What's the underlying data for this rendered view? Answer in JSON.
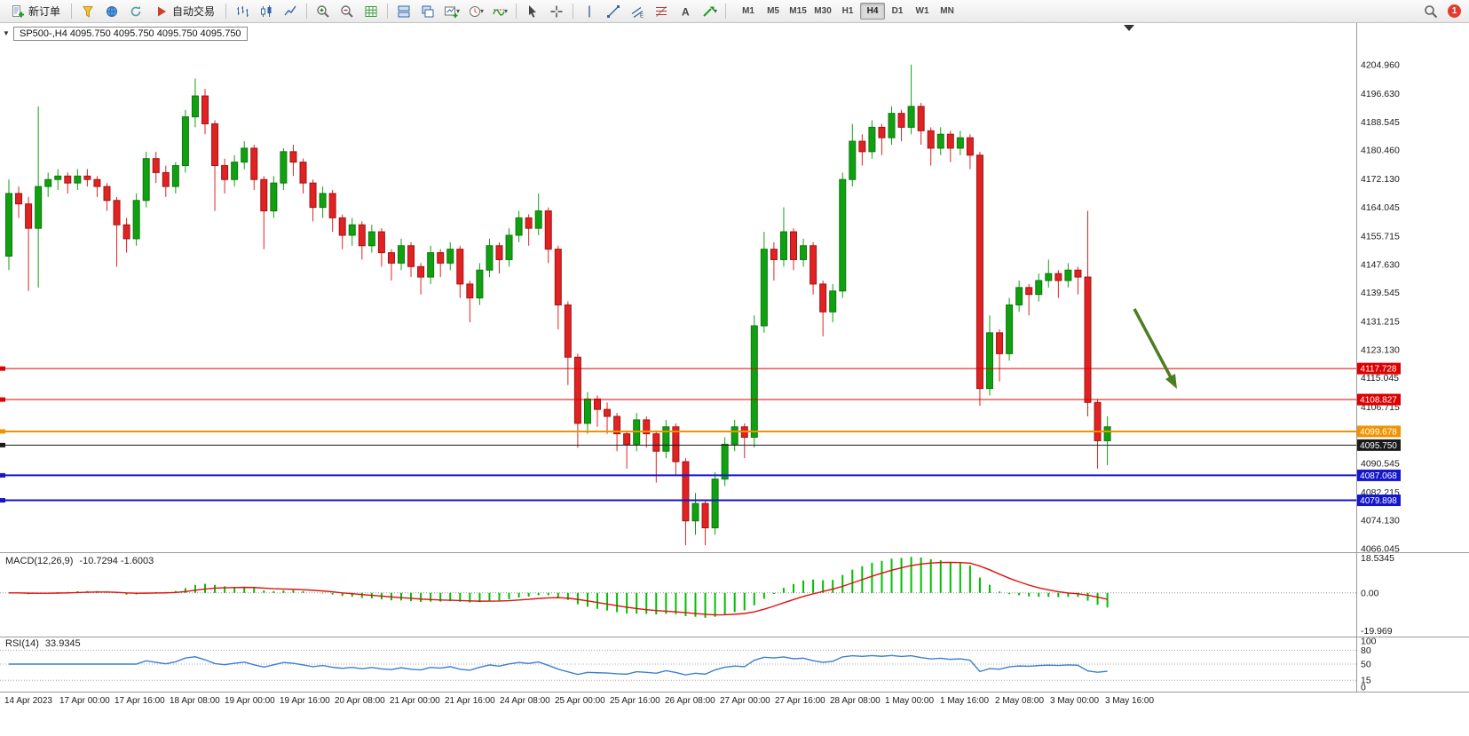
{
  "toolbar": {
    "new_order": "新订单",
    "auto_trading": "自动交易",
    "timeframes": [
      "M1",
      "M5",
      "M15",
      "M30",
      "H1",
      "H4",
      "D1",
      "W1",
      "MN"
    ],
    "active_timeframe": "H4",
    "notification_count": "1"
  },
  "chart": {
    "symbol_header": "SP500-,H4  4095.750 4095.750 4095.750 4095.750"
  },
  "chart_data": {
    "type": "candlestick",
    "symbol": "SP500-",
    "timeframe": "H4",
    "price_range": {
      "min": 4065.0,
      "max": 4215.9
    },
    "price_axis_ticks": [
      "4204.960",
      "4196.630",
      "4188.545",
      "4180.460",
      "4172.130",
      "4164.045",
      "4155.715",
      "4147.630",
      "4139.545",
      "4131.215",
      "4123.130",
      "4115.045",
      "4106.715",
      "4090.545",
      "4082.215",
      "4074.130",
      "4066.045"
    ],
    "price_lines": [
      {
        "price": 4117.728,
        "label": "4117.728",
        "color": "#dd0000",
        "width": 1
      },
      {
        "price": 4108.827,
        "label": "4108.827",
        "color": "#dd0000",
        "width": 1
      },
      {
        "price": 4099.678,
        "label": "4099.678",
        "color": "#ef9400",
        "width": 2
      },
      {
        "price": 4095.75,
        "label": "4095.750",
        "color": "#1a1a1a",
        "width": 1
      },
      {
        "price": 4087.068,
        "label": "4087.068",
        "color": "#1515cc",
        "width": 2
      },
      {
        "price": 4079.898,
        "label": "4079.898",
        "color": "#1515cc",
        "width": 2
      }
    ],
    "current_price": "4095.750",
    "up_color": "#11a011",
    "down_color": "#e02222",
    "arrow_annotation": {
      "color": "#4c7d21"
    },
    "time_labels": [
      "14 Apr 2023",
      "17 Apr 00:00",
      "17 Apr 16:00",
      "18 Apr 08:00",
      "19 Apr 00:00",
      "19 Apr 16:00",
      "20 Apr 08:00",
      "21 Apr 00:00",
      "21 Apr 16:00",
      "24 Apr 08:00",
      "25 Apr 00:00",
      "25 Apr 16:00",
      "26 Apr 08:00",
      "27 Apr 00:00",
      "27 Apr 16:00",
      "28 Apr 08:00",
      "1 May 00:00",
      "1 May 16:00",
      "2 May 08:00",
      "3 May 00:00",
      "3 May 16:00"
    ],
    "indicators": {
      "macd": {
        "name": "MACD(12,26,9)",
        "values_text": "-10.7294 -1.6003",
        "axis": [
          "18.5345",
          "0.00",
          "-19.969"
        ],
        "scale_max": 18.5345,
        "scale_min": -19.969,
        "histogram_color": "#00c000",
        "signal_color": "#e01010"
      },
      "rsi": {
        "name": "RSI(14)",
        "value_text": "33.9345",
        "axis": [
          {
            "v": 100,
            "label": "100"
          },
          {
            "v": 80,
            "label": "80"
          },
          {
            "v": 50,
            "label": "50"
          },
          {
            "v": 15,
            "label": "15"
          },
          {
            "v": 0,
            "label": "0"
          }
        ],
        "levels": [
          80,
          50,
          15
        ],
        "line_color": "#3c7fd0"
      }
    },
    "ohlc": [
      [
        4150,
        4172,
        4146,
        4168
      ],
      [
        4168,
        4170,
        4161,
        4165
      ],
      [
        4165,
        4167,
        4140,
        4158
      ],
      [
        4158,
        4193,
        4141,
        4170
      ],
      [
        4170,
        4174,
        4167,
        4172
      ],
      [
        4172,
        4175,
        4169,
        4173
      ],
      [
        4173,
        4174,
        4168,
        4171
      ],
      [
        4171,
        4175,
        4169,
        4173
      ],
      [
        4173,
        4175,
        4170,
        4172
      ],
      [
        4172,
        4173,
        4167,
        4170
      ],
      [
        4170,
        4171,
        4163,
        4166
      ],
      [
        4166,
        4167,
        4147,
        4159
      ],
      [
        4159,
        4161,
        4151,
        4155
      ],
      [
        4155,
        4168,
        4153,
        4166
      ],
      [
        4166,
        4180,
        4164,
        4178
      ],
      [
        4178,
        4180,
        4171,
        4174
      ],
      [
        4174,
        4176,
        4167,
        4170
      ],
      [
        4170,
        4177,
        4168,
        4176
      ],
      [
        4176,
        4192,
        4174,
        4190
      ],
      [
        4190,
        4201,
        4187,
        4196
      ],
      [
        4196,
        4198,
        4185,
        4188
      ],
      [
        4188,
        4189,
        4163,
        4176
      ],
      [
        4176,
        4178,
        4168,
        4172
      ],
      [
        4172,
        4179,
        4170,
        4177
      ],
      [
        4177,
        4183,
        4175,
        4181
      ],
      [
        4181,
        4182,
        4169,
        4172
      ],
      [
        4172,
        4173,
        4152,
        4163
      ],
      [
        4163,
        4173,
        4161,
        4171
      ],
      [
        4171,
        4181,
        4169,
        4180
      ],
      [
        4180,
        4182,
        4173,
        4177
      ],
      [
        4177,
        4178,
        4168,
        4171
      ],
      [
        4171,
        4172,
        4160,
        4164
      ],
      [
        4164,
        4170,
        4161,
        4168
      ],
      [
        4168,
        4169,
        4157,
        4161
      ],
      [
        4161,
        4162,
        4152,
        4156
      ],
      [
        4156,
        4161,
        4153,
        4159
      ],
      [
        4159,
        4160,
        4149,
        4153
      ],
      [
        4153,
        4159,
        4151,
        4157
      ],
      [
        4157,
        4158,
        4147,
        4151
      ],
      [
        4151,
        4152,
        4143,
        4148
      ],
      [
        4148,
        4155,
        4146,
        4153
      ],
      [
        4153,
        4154,
        4144,
        4147
      ],
      [
        4147,
        4148,
        4139,
        4144
      ],
      [
        4144,
        4153,
        4142,
        4151
      ],
      [
        4151,
        4152,
        4144,
        4148
      ],
      [
        4148,
        4154,
        4146,
        4152
      ],
      [
        4152,
        4153,
        4138,
        4142
      ],
      [
        4142,
        4143,
        4131,
        4138
      ],
      [
        4138,
        4148,
        4136,
        4146
      ],
      [
        4146,
        4155,
        4144,
        4153
      ],
      [
        4153,
        4154,
        4145,
        4149
      ],
      [
        4149,
        4158,
        4147,
        4156
      ],
      [
        4156,
        4163,
        4154,
        4161
      ],
      [
        4161,
        4162,
        4153,
        4158
      ],
      [
        4158,
        4168,
        4156,
        4163
      ],
      [
        4163,
        4164,
        4148,
        4152
      ],
      [
        4152,
        4153,
        4129,
        4136
      ],
      [
        4136,
        4137,
        4113,
        4121
      ],
      [
        4121,
        4122,
        4095,
        4102
      ],
      [
        4102,
        4111,
        4099,
        4109
      ],
      [
        4109,
        4110,
        4101,
        4106
      ],
      [
        4106,
        4108,
        4099,
        4104
      ],
      [
        4104,
        4105,
        4094,
        4099
      ],
      [
        4099,
        4100,
        4089,
        4096
      ],
      [
        4096,
        4105,
        4094,
        4103
      ],
      [
        4103,
        4104,
        4095,
        4099
      ],
      [
        4099,
        4100,
        4085,
        4094
      ],
      [
        4094,
        4103,
        4092,
        4101
      ],
      [
        4101,
        4102,
        4087,
        4091
      ],
      [
        4091,
        4092,
        4067,
        4074
      ],
      [
        4074,
        4082,
        4070,
        4079
      ],
      [
        4079,
        4080,
        4067,
        4072
      ],
      [
        4072,
        4088,
        4070,
        4086
      ],
      [
        4086,
        4098,
        4084,
        4096
      ],
      [
        4096,
        4103,
        4094,
        4101
      ],
      [
        4101,
        4102,
        4092,
        4098
      ],
      [
        4098,
        4133,
        4095,
        4130
      ],
      [
        4130,
        4157,
        4128,
        4152
      ],
      [
        4152,
        4154,
        4143,
        4149
      ],
      [
        4149,
        4164,
        4147,
        4157
      ],
      [
        4157,
        4158,
        4146,
        4149
      ],
      [
        4149,
        4155,
        4147,
        4153
      ],
      [
        4153,
        4154,
        4139,
        4142
      ],
      [
        4142,
        4143,
        4127,
        4134
      ],
      [
        4134,
        4142,
        4131,
        4140
      ],
      [
        4140,
        4174,
        4138,
        4172
      ],
      [
        4172,
        4188,
        4170,
        4183
      ],
      [
        4183,
        4185,
        4176,
        4180
      ],
      [
        4180,
        4189,
        4178,
        4187
      ],
      [
        4187,
        4188,
        4179,
        4184
      ],
      [
        4184,
        4193,
        4182,
        4191
      ],
      [
        4191,
        4192,
        4183,
        4187
      ],
      [
        4187,
        4205,
        4185,
        4193
      ],
      [
        4193,
        4194,
        4182,
        4186
      ],
      [
        4186,
        4187,
        4176,
        4181
      ],
      [
        4181,
        4187,
        4179,
        4185
      ],
      [
        4185,
        4186,
        4177,
        4181
      ],
      [
        4181,
        4186,
        4179,
        4184
      ],
      [
        4184,
        4185,
        4175,
        4179
      ],
      [
        4179,
        4180,
        4107,
        4112
      ],
      [
        4112,
        4133,
        4110,
        4128
      ],
      [
        4128,
        4129,
        4114,
        4122
      ],
      [
        4122,
        4138,
        4120,
        4136
      ],
      [
        4136,
        4143,
        4134,
        4141
      ],
      [
        4141,
        4142,
        4133,
        4139
      ],
      [
        4139,
        4145,
        4137,
        4143
      ],
      [
        4143,
        4149,
        4141,
        4145
      ],
      [
        4145,
        4146,
        4138,
        4143
      ],
      [
        4143,
        4148,
        4141,
        4146
      ],
      [
        4146,
        4147,
        4139,
        4144
      ],
      [
        4144,
        4163,
        4104,
        4108
      ],
      [
        4108,
        4109,
        4089,
        4097
      ],
      [
        4097,
        4104,
        4090,
        4101
      ]
    ]
  }
}
